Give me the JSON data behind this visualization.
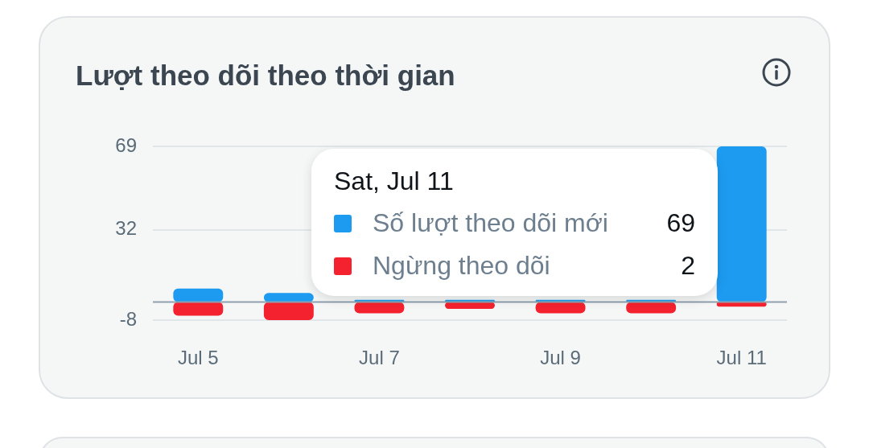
{
  "chart_data": {
    "type": "bar",
    "title": "Lượt theo dõi theo thời gian",
    "categories": [
      "Jul 5",
      null,
      "Jul 7",
      null,
      "Jul 9",
      null,
      "Jul 11"
    ],
    "series": [
      {
        "name": "Số lượt theo dõi mới",
        "color": "#1d9bf0",
        "values": [
          6,
          4,
          1,
          1,
          1,
          1,
          69
        ]
      },
      {
        "name": "Ngừng theo dõi",
        "color": "#f4212e",
        "values": [
          -6,
          -8,
          -5,
          -3,
          -5,
          -5,
          -2
        ]
      }
    ],
    "stacked": true,
    "ylim": [
      -8,
      69
    ],
    "yticks": [
      -8,
      32,
      69
    ],
    "grid": "y",
    "legend": "right",
    "annotations": [
      "Sat, Jul 11",
      "69",
      "2"
    ]
  }
}
